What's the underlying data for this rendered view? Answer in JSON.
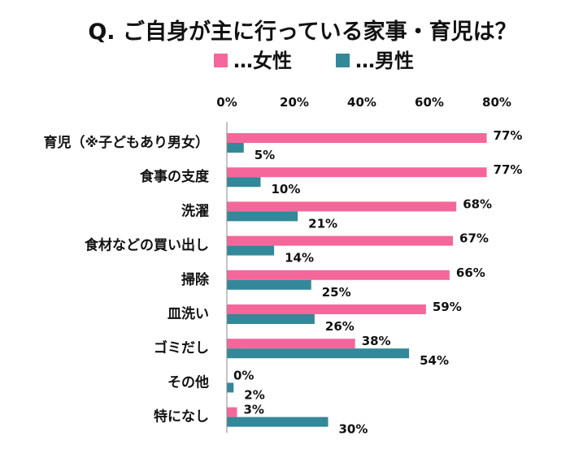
{
  "chart_data": {
    "type": "bar",
    "orientation": "horizontal",
    "title": "Q. ご自身が主に行っている家事・育児は？",
    "categories": [
      "育児（※子どもあり男女）",
      "食事の支度",
      "洗濯",
      "食材などの買い出し",
      "掃除",
      "皿洗い",
      "ゴミだし",
      "その他",
      "特になし"
    ],
    "series": [
      {
        "name": "…女性",
        "color": "#F5679A",
        "values": [
          77,
          77,
          68,
          67,
          66,
          59,
          38,
          0,
          3
        ],
        "labels": [
          "77%",
          "77%",
          "68%",
          "67%",
          "66%",
          "59%",
          "38%",
          "0%",
          "3%"
        ]
      },
      {
        "name": "…男性",
        "color": "#338899",
        "values": [
          5,
          10,
          21,
          14,
          25,
          26,
          54,
          2,
          30
        ],
        "labels": [
          "5%",
          "10%",
          "21%",
          "14%",
          "25%",
          "26%",
          "54%",
          "2%",
          "30%"
        ]
      }
    ],
    "xlim": [
      0,
      80
    ],
    "x_ticks": [
      "0%",
      "20%",
      "40%",
      "60%",
      "80%"
    ],
    "x_tick_values": [
      0,
      20,
      40,
      60,
      80
    ],
    "x_axis_position": "top",
    "grid": false,
    "legend": {
      "position": "top"
    }
  }
}
